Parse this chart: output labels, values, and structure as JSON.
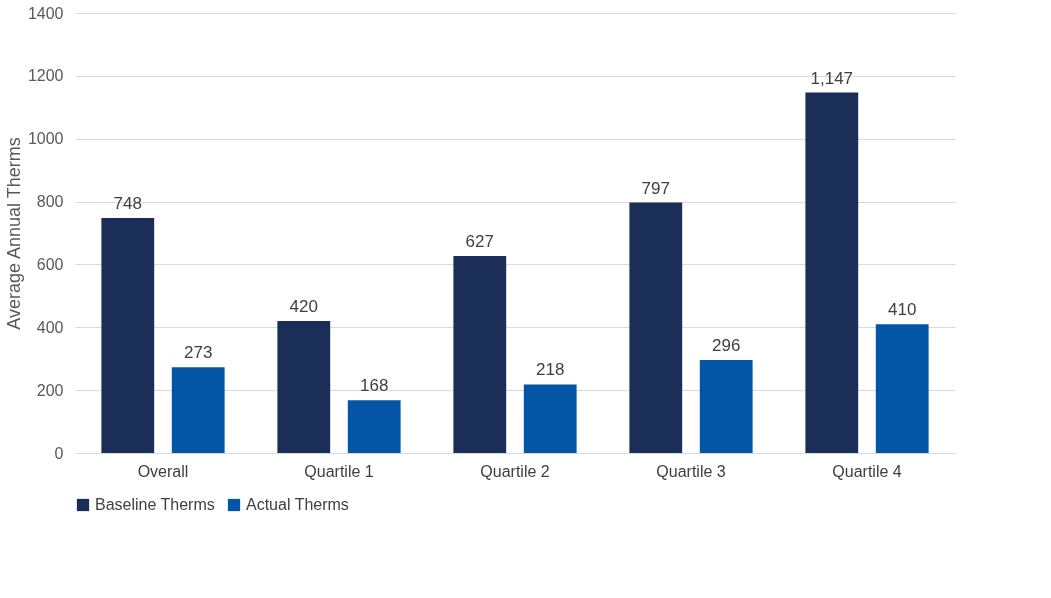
{
  "chart_data": {
    "type": "bar",
    "ylabel": "Average Annual Therms",
    "categories": [
      "Overall",
      "Quartile 1",
      "Quartile 2",
      "Quartile 3",
      "Quartile 4"
    ],
    "series": [
      {
        "name": "Baseline Therms",
        "color": "#1a2e57",
        "values": [
          748,
          420,
          627,
          797,
          1147
        ],
        "value_labels": [
          "748",
          "420",
          "627",
          "797",
          "1,147"
        ]
      },
      {
        "name": "Actual Therms",
        "color": "#0455a6",
        "values": [
          273,
          168,
          218,
          296,
          410
        ],
        "value_labels": [
          "273",
          "168",
          "218",
          "296",
          "410"
        ]
      }
    ],
    "ylim": [
      0,
      1400
    ],
    "yticks": [
      0,
      200,
      400,
      600,
      800,
      1000,
      1200,
      1400
    ],
    "grid": "y",
    "legend": "bottom"
  }
}
